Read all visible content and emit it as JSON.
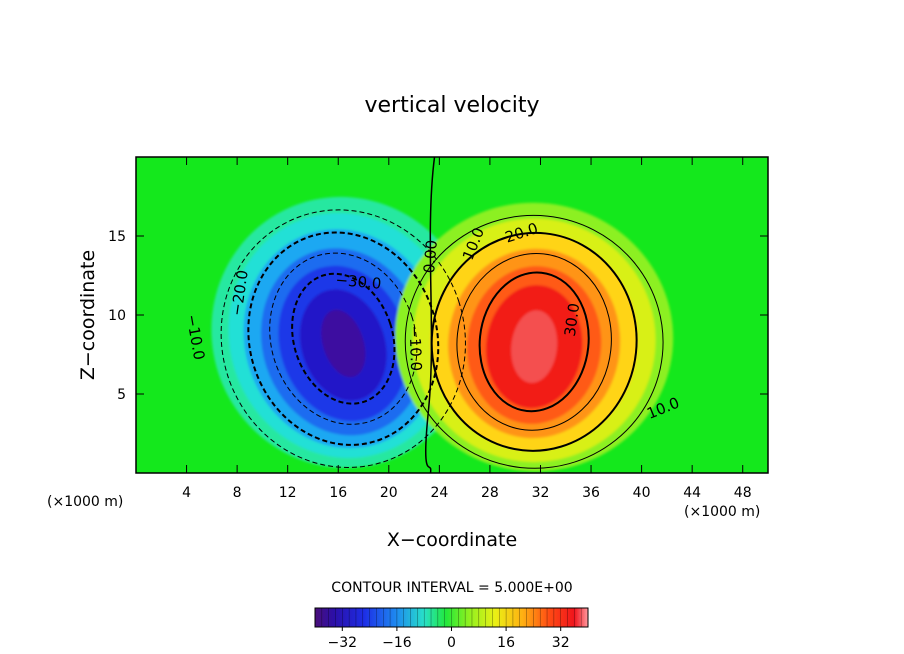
{
  "chart_data": {
    "type": "heatmap",
    "title": "vertical velocity",
    "xlabel": "X−coordinate",
    "ylabel": "Z−coordinate",
    "x_unit_left": "(×1000 m)",
    "x_unit_right": "(×1000 m)",
    "xlim": [
      0,
      50
    ],
    "ylim": [
      0,
      20
    ],
    "x_ticks": [
      4,
      8,
      12,
      16,
      20,
      24,
      28,
      32,
      36,
      40,
      44,
      48
    ],
    "y_ticks": [
      5,
      10,
      15
    ],
    "contour_interval_text": "CONTOUR INTERVAL = 5.000E+00",
    "colorbar": {
      "range": [
        -40,
        40
      ],
      "ticks": [
        -32,
        -16,
        0,
        16,
        32
      ],
      "tick_labels": [
        "−32",
        "−16",
        "0",
        "16",
        "32"
      ]
    },
    "features": [
      {
        "name": "downdraft",
        "center_x": 16,
        "center_z": 8.5,
        "peak": -40
      },
      {
        "name": "updraft",
        "center_x": 31.5,
        "center_z": 8.3,
        "peak": 40
      }
    ],
    "contour_labels": [
      {
        "text": "−30.0",
        "x": 17.6,
        "z": 12.1,
        "rot": 5
      },
      {
        "text": "−20.0",
        "x": 8.2,
        "z": 11.4,
        "rot": -82
      },
      {
        "text": "−10.0",
        "x": 4.7,
        "z": 8.6,
        "rot": 80
      },
      {
        "text": "−10.0",
        "x": 22.1,
        "z": 7.9,
        "rot": 88
      },
      {
        "text": "0.00",
        "x": 23.3,
        "z": 13.7,
        "rot": -85
      },
      {
        "text": "10.0",
        "x": 26.7,
        "z": 14.5,
        "rot": -68
      },
      {
        "text": "20.0",
        "x": 30.5,
        "z": 15.2,
        "rot": -18
      },
      {
        "text": "30.0",
        "x": 34.5,
        "z": 9.7,
        "rot": -82
      },
      {
        "text": "10.0",
        "x": 41.7,
        "z": 4.1,
        "rot": -22
      }
    ]
  }
}
